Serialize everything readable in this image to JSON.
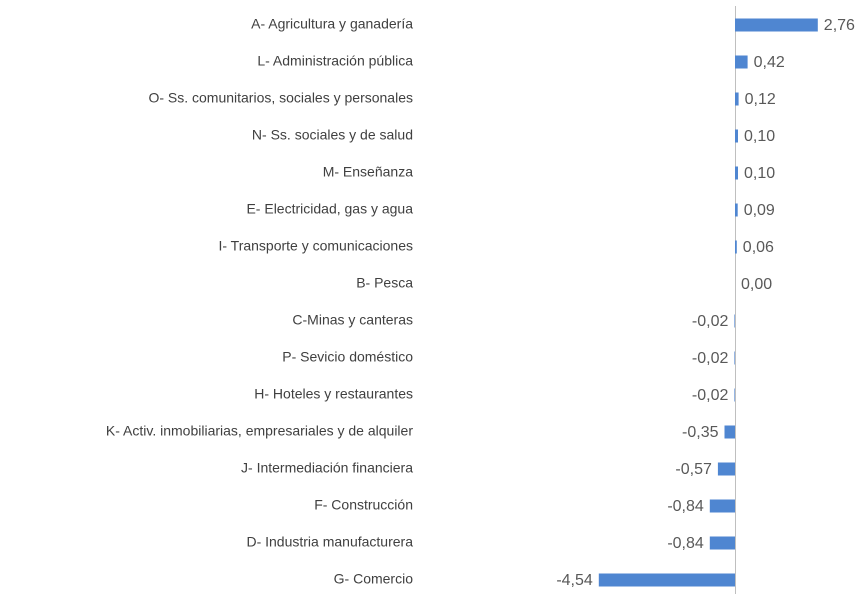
{
  "chart_data": {
    "type": "bar",
    "orientation": "horizontal",
    "categories": [
      "A- Agricultura y ganadería",
      "L- Administración pública",
      "O- Ss. comunitarios, sociales y personales",
      "N- Ss. sociales y de salud",
      "M- Enseñanza",
      "E- Electricidad, gas y agua",
      "I- Transporte y comunicaciones",
      "B- Pesca",
      "C-Minas y canteras",
      "P- Sevicio doméstico",
      "H- Hoteles y restaurantes",
      "K- Activ. inmobiliarias, empresariales y de alquiler",
      "J- Intermediación financiera",
      "F- Construcción",
      "D- Industria manufacturera",
      "G- Comercio"
    ],
    "values": [
      2.76,
      0.42,
      0.12,
      0.1,
      0.1,
      0.09,
      0.06,
      0.0,
      -0.02,
      -0.02,
      -0.02,
      -0.35,
      -0.57,
      -0.84,
      -0.84,
      -4.54
    ],
    "value_labels": [
      "2,76",
      "0,42",
      "0,12",
      "0,10",
      "0,10",
      "0,09",
      "0,06",
      "0,00",
      "-0,02",
      "-0,02",
      "-0,02",
      "-0,35",
      "-0,57",
      "-0,84",
      "-0,84",
      "-4,54"
    ],
    "color": "#4f86d1"
  }
}
